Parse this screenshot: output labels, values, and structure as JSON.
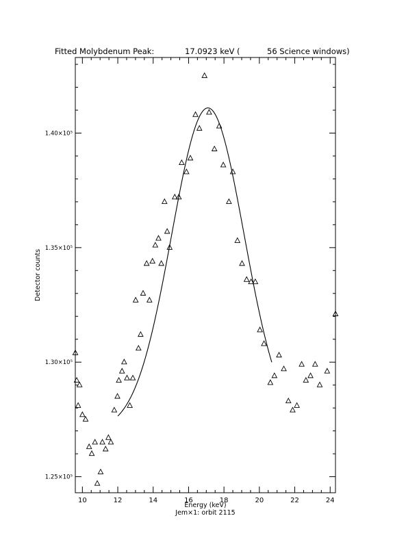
{
  "title": {
    "left": "Fitted Molybdenum Peak:",
    "energy": "17.0923 keV (",
    "windows": "56 Science windows)"
  },
  "caption": "Jem×1: orbit 2115",
  "chart_data": {
    "type": "scatter",
    "xlabel": "Energy (keV)",
    "ylabel": "Detector counts",
    "xlim": [
      9.6,
      24.3
    ],
    "ylim": [
      124300,
      143300
    ],
    "xticks": [
      {
        "value": 10,
        "label": "10"
      },
      {
        "value": 12,
        "label": "12"
      },
      {
        "value": 14,
        "label": "14"
      },
      {
        "value": 16,
        "label": "16"
      },
      {
        "value": 18,
        "label": "18"
      },
      {
        "value": 20,
        "label": "20"
      },
      {
        "value": 22,
        "label": "22"
      },
      {
        "value": 24,
        "label": "24"
      }
    ],
    "yticks": [
      {
        "value": 125000,
        "label": "1.25×10⁵"
      },
      {
        "value": 130000,
        "label": "1.30×10⁵"
      },
      {
        "value": 135000,
        "label": "1.35×10⁵"
      },
      {
        "value": 140000,
        "label": "1.40×10⁵"
      }
    ],
    "points": [
      [
        9.6,
        130400
      ],
      [
        9.68,
        129200
      ],
      [
        9.76,
        128100
      ],
      [
        9.84,
        129000
      ],
      [
        10.0,
        127700
      ],
      [
        10.18,
        127500
      ],
      [
        10.38,
        126300
      ],
      [
        10.53,
        126000
      ],
      [
        10.71,
        126500
      ],
      [
        10.84,
        124700
      ],
      [
        11.03,
        125200
      ],
      [
        11.13,
        126500
      ],
      [
        11.31,
        126200
      ],
      [
        11.47,
        126700
      ],
      [
        11.61,
        126500
      ],
      [
        11.8,
        127900
      ],
      [
        11.98,
        128500
      ],
      [
        12.06,
        129200
      ],
      [
        12.24,
        129600
      ],
      [
        12.36,
        130000
      ],
      [
        12.52,
        129300
      ],
      [
        12.68,
        128100
      ],
      [
        12.85,
        129300
      ],
      [
        13.01,
        132700
      ],
      [
        13.17,
        130600
      ],
      [
        13.29,
        131200
      ],
      [
        13.43,
        133000
      ],
      [
        13.63,
        134300
      ],
      [
        13.79,
        132700
      ],
      [
        13.96,
        134400
      ],
      [
        14.12,
        135100
      ],
      [
        14.3,
        135400
      ],
      [
        14.46,
        134300
      ],
      [
        14.64,
        137000
      ],
      [
        14.79,
        135700
      ],
      [
        14.93,
        135000
      ],
      [
        15.22,
        137200
      ],
      [
        15.45,
        137200
      ],
      [
        15.61,
        138700
      ],
      [
        15.88,
        138300
      ],
      [
        16.1,
        138900
      ],
      [
        16.39,
        140800
      ],
      [
        16.61,
        140200
      ],
      [
        16.9,
        142500
      ],
      [
        17.16,
        140900
      ],
      [
        17.46,
        139300
      ],
      [
        17.73,
        140300
      ],
      [
        17.96,
        138600
      ],
      [
        18.28,
        137000
      ],
      [
        18.5,
        138300
      ],
      [
        18.76,
        135300
      ],
      [
        19.02,
        134300
      ],
      [
        19.28,
        133600
      ],
      [
        19.53,
        133500
      ],
      [
        19.77,
        133500
      ],
      [
        20.03,
        131400
      ],
      [
        20.26,
        130800
      ],
      [
        20.62,
        129100
      ],
      [
        20.85,
        129400
      ],
      [
        21.11,
        130300
      ],
      [
        21.38,
        129700
      ],
      [
        21.64,
        128300
      ],
      [
        21.88,
        127900
      ],
      [
        22.12,
        128100
      ],
      [
        22.39,
        129900
      ],
      [
        22.63,
        129200
      ],
      [
        22.89,
        129400
      ],
      [
        23.15,
        129900
      ],
      [
        23.41,
        129000
      ],
      [
        23.83,
        129600
      ],
      [
        24.3,
        132100
      ]
    ],
    "fit": {
      "type": "gaussian",
      "center": 17.0923,
      "amplitude": 14100,
      "baseline": 127000,
      "sigma": 2.05,
      "xrange": [
        12.0,
        20.7
      ]
    }
  }
}
